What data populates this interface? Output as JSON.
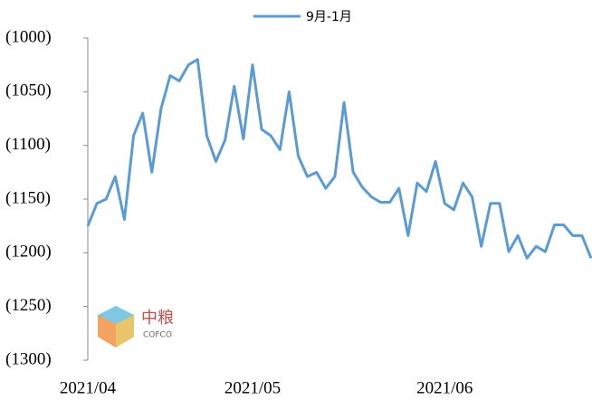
{
  "chart_data": {
    "type": "line",
    "categories": [
      "2021/04",
      null,
      null,
      null,
      null,
      null,
      null,
      null,
      null,
      null,
      null,
      null,
      null,
      null,
      null,
      null,
      null,
      null,
      "2021/05",
      null,
      null,
      null,
      null,
      null,
      null,
      null,
      null,
      null,
      null,
      null,
      null,
      null,
      null,
      null,
      null,
      null,
      null,
      null,
      null,
      "2021/06",
      null,
      null,
      null,
      null,
      null,
      null,
      null,
      null,
      null,
      null,
      null,
      null,
      null,
      null,
      null,
      null
    ],
    "series": [
      {
        "name": "9月-1月",
        "color": "#5b9bd5",
        "values": [
          -1175,
          -1154,
          -1150,
          -1129,
          -1169,
          -1091,
          -1070,
          -1125,
          -1066,
          -1035,
          -1040,
          -1025,
          -1020,
          -1091,
          -1115,
          -1095,
          -1045,
          -1094,
          -1025,
          -1085,
          -1091,
          -1104,
          -1050,
          -1110,
          -1129,
          -1125,
          -1140,
          -1129,
          -1060,
          -1125,
          -1139,
          -1148,
          -1153,
          -1153,
          -1140,
          -1184,
          -1135,
          -1143,
          -1115,
          -1154,
          -1160,
          -1135,
          -1148,
          -1194,
          -1154,
          -1154,
          -1199,
          -1184,
          -1205,
          -1194,
          -1199,
          -1174,
          -1174,
          -1184,
          -1184,
          -1205
        ]
      }
    ],
    "ylim": [
      -1300,
      -1000
    ],
    "yticks": [
      {
        "value": -1000,
        "label": "(1000)"
      },
      {
        "value": -1050,
        "label": "(1050)"
      },
      {
        "value": -1100,
        "label": "(1100)"
      },
      {
        "value": -1150,
        "label": "(1150)"
      },
      {
        "value": -1200,
        "label": "(1200)"
      },
      {
        "value": -1250,
        "label": "(1250)"
      },
      {
        "value": -1300,
        "label": "(1300)"
      }
    ],
    "grid": false,
    "legend": "top",
    "watermark": {
      "brand": "中粮",
      "name": "COFCO"
    }
  }
}
